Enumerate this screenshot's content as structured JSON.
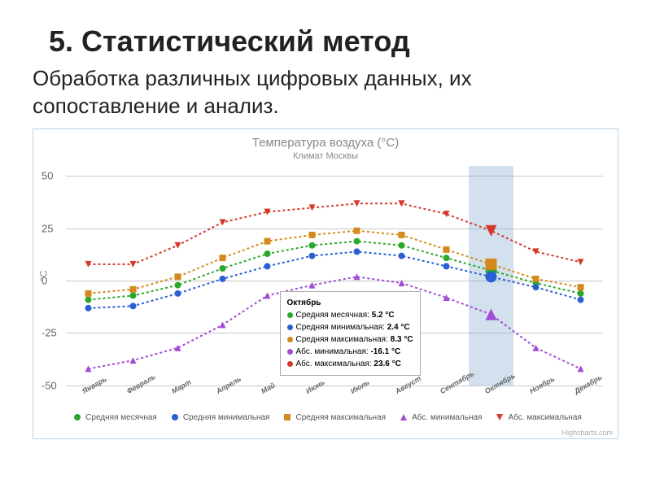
{
  "heading_num": "5.",
  "heading_text": "Статистический метод",
  "subhead": "Обработка различных цифровых данных, их сопоставление и анализ.",
  "chart": {
    "type": "line",
    "title": "Температура воздуха (°C)",
    "subtitle": "Климат Москвы",
    "ylabel": "°C",
    "ylim": [
      -50,
      55
    ],
    "yticks": [
      -50,
      -25,
      0,
      25,
      50
    ],
    "categories": [
      "Январь",
      "Февраль",
      "Март",
      "Апрель",
      "Май",
      "Июнь",
      "Июль",
      "Август",
      "Сентябрь",
      "Октябрь",
      "Ноябрь",
      "Декабрь"
    ],
    "background_color": "#ffffff",
    "grid_color": "#c8c8c8",
    "highlight_index": 9,
    "highlight_color": "rgba(130,170,210,.35)",
    "credits": "Highcharts.com",
    "series": [
      {
        "name": "Средняя месячная",
        "color": "#2aa82a",
        "marker": "circle",
        "dash": "3,3",
        "data": [
          -9,
          -7,
          -2,
          6,
          13,
          17,
          19,
          17,
          11,
          5,
          -1,
          -6
        ]
      },
      {
        "name": "Средняя минимальная",
        "color": "#2a5fd4",
        "marker": "circle",
        "dash": "3,3",
        "data": [
          -13,
          -12,
          -6,
          1,
          7,
          12,
          14,
          12,
          7,
          2,
          -3,
          -9
        ]
      },
      {
        "name": "Средняя максимальная",
        "color": "#d48a1e",
        "marker": "square",
        "dash": "3,3",
        "data": [
          -6,
          -4,
          2,
          11,
          19,
          22,
          24,
          22,
          15,
          8,
          1,
          -3
        ]
      },
      {
        "name": "Абс. минимальная",
        "color": "#a24bd4",
        "marker": "triangle",
        "dash": "3,3",
        "data": [
          -42,
          -38,
          -32,
          -21,
          -7,
          -2,
          2,
          -1,
          -8,
          -16,
          -32,
          -42
        ]
      },
      {
        "name": "Абс. максимальная",
        "color": "#d43a2a",
        "marker": "triangle-down",
        "dash": "3,3",
        "data": [
          8,
          8,
          17,
          28,
          33,
          35,
          37,
          37,
          32,
          24,
          14,
          9
        ]
      }
    ]
  },
  "tooltip": {
    "title": "Октябрь",
    "items": [
      {
        "label": "Средняя месячная",
        "value": "5.2 °C",
        "color": "#2aa82a"
      },
      {
        "label": "Средняя минимальная",
        "value": "2.4 °C",
        "color": "#2a5fd4"
      },
      {
        "label": "Средняя максимальная",
        "value": "8.3 °C",
        "color": "#d48a1e"
      },
      {
        "label": "Абс. минимальная",
        "value": "-16.1 °C",
        "color": "#a24bd4"
      },
      {
        "label": "Абс. максимальная",
        "value": "23.6 °C",
        "color": "#d43a2a"
      }
    ]
  }
}
